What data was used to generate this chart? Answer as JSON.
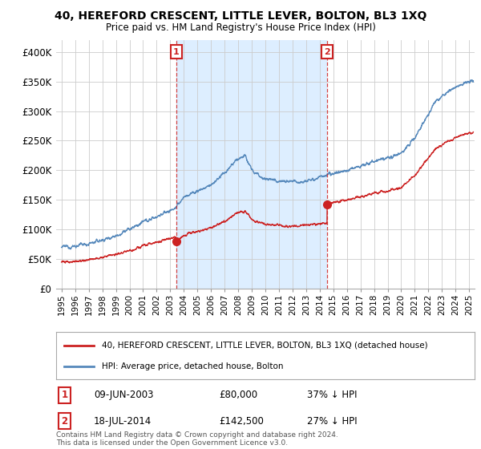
{
  "title": "40, HEREFORD CRESCENT, LITTLE LEVER, BOLTON, BL3 1XQ",
  "subtitle": "Price paid vs. HM Land Registry's House Price Index (HPI)",
  "ylim": [
    0,
    420000
  ],
  "yticks": [
    0,
    50000,
    100000,
    150000,
    200000,
    250000,
    300000,
    350000,
    400000
  ],
  "ytick_labels": [
    "£0",
    "£50K",
    "£100K",
    "£150K",
    "£200K",
    "£250K",
    "£300K",
    "£350K",
    "£400K"
  ],
  "xlim_start": 1994.6,
  "xlim_end": 2025.4,
  "hpi_color": "#5588bb",
  "price_color": "#cc2222",
  "shade_color": "#ddeeff",
  "sale1_x": 2003.44,
  "sale1_y": 80000,
  "sale2_x": 2014.54,
  "sale2_y": 142500,
  "legend_label1": "40, HEREFORD CRESCENT, LITTLE LEVER, BOLTON, BL3 1XQ (detached house)",
  "legend_label2": "HPI: Average price, detached house, Bolton",
  "note1_label": "1",
  "note1_date": "09-JUN-2003",
  "note1_price": "£80,000",
  "note1_pct": "37% ↓ HPI",
  "note2_label": "2",
  "note2_date": "18-JUL-2014",
  "note2_price": "£142,500",
  "note2_pct": "27% ↓ HPI",
  "footer": "Contains HM Land Registry data © Crown copyright and database right 2024.\nThis data is licensed under the Open Government Licence v3.0.",
  "background_color": "#ffffff",
  "grid_color": "#cccccc"
}
